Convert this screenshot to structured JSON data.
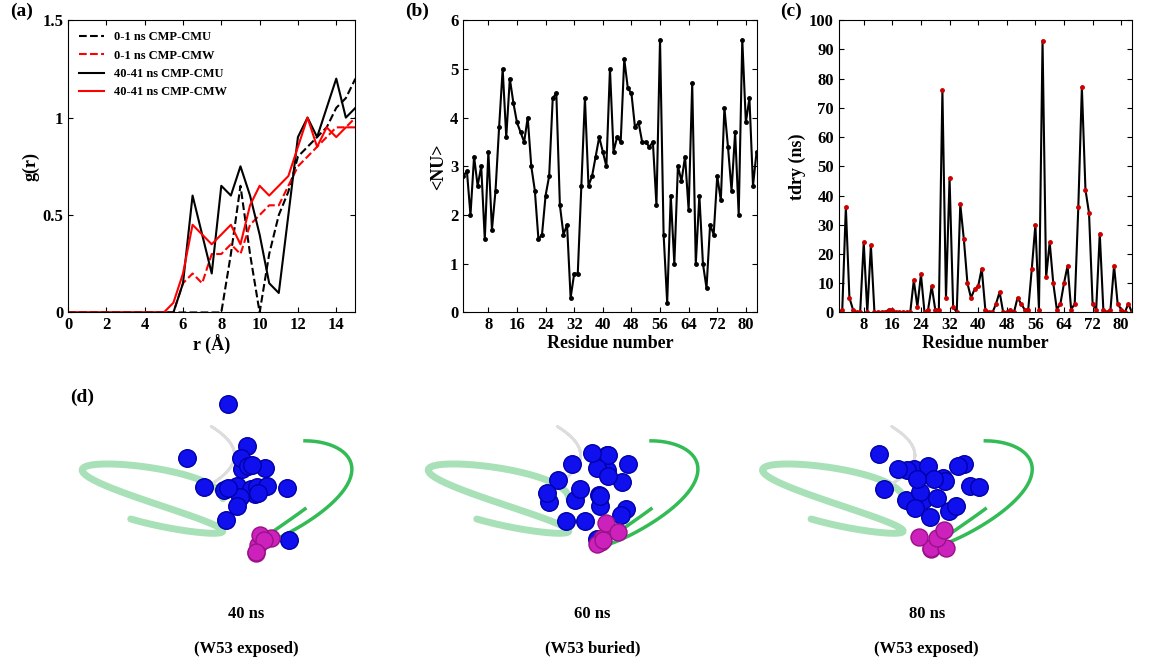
{
  "chart_data": [
    {
      "type": "line",
      "title": "(a)",
      "x_label": "r (Å)",
      "y_label": "g(r)",
      "x": [
        0,
        0.5,
        1,
        1.5,
        2,
        2.5,
        3,
        3.5,
        4,
        4.5,
        5,
        5.5,
        6,
        6.5,
        7,
        7.5,
        8,
        8.5,
        9,
        9.5,
        10,
        10.5,
        11,
        11.5,
        12,
        12.5,
        13,
        13.5,
        14,
        14.5,
        15
      ],
      "xlim": [
        0,
        15
      ],
      "xticks": [
        0,
        2,
        4,
        6,
        8,
        10,
        12,
        14
      ],
      "ylim": [
        0,
        1.5
      ],
      "yticks": [
        0,
        0.5,
        1,
        1.5
      ],
      "legend": "upper left",
      "series": [
        {
          "name": "0-1 ns CMP-CMU",
          "color": "#000000",
          "line_style": "dashed",
          "values": [
            0,
            0,
            0,
            0,
            0,
            0,
            0,
            0,
            0,
            0,
            0,
            0,
            0,
            0,
            0,
            0,
            0,
            0.3,
            0.65,
            0.3,
            0.0,
            0.3,
            0.5,
            0.62,
            0.8,
            0.85,
            0.9,
            0.95,
            1.05,
            1.1,
            1.2
          ]
        },
        {
          "name": "0-1 ns CMP-CMW",
          "color": "#ff0000",
          "line_style": "dashed",
          "values": [
            0,
            0,
            0,
            0,
            0,
            0,
            0,
            0,
            0,
            0,
            0,
            0,
            0.15,
            0.2,
            0.15,
            0.3,
            0.3,
            0.35,
            0.3,
            0.45,
            0.5,
            0.55,
            0.55,
            0.65,
            0.75,
            0.8,
            0.85,
            0.9,
            0.95,
            0.95,
            1.0
          ]
        },
        {
          "name": "40-41 ns CMP-CMU",
          "color": "#000000",
          "line_style": "solid",
          "values": [
            0,
            0,
            0,
            0,
            0,
            0,
            0,
            0,
            0,
            0,
            0,
            0,
            0.15,
            0.6,
            0.4,
            0.2,
            0.65,
            0.6,
            0.75,
            0.6,
            0.4,
            0.15,
            0.1,
            0.5,
            0.9,
            1.0,
            0.9,
            1.05,
            1.2,
            1.0,
            1.05
          ]
        },
        {
          "name": "40-41 ns CMP-CMW",
          "color": "#ff0000",
          "line_style": "solid",
          "values": [
            0,
            0,
            0,
            0,
            0,
            0,
            0,
            0,
            0,
            0,
            0,
            0.05,
            0.2,
            0.45,
            0.4,
            0.35,
            0.4,
            0.45,
            0.35,
            0.55,
            0.65,
            0.6,
            0.65,
            0.7,
            0.85,
            1.0,
            0.85,
            0.95,
            0.9,
            0.95,
            0.95
          ]
        }
      ]
    },
    {
      "type": "line",
      "title": "(b)",
      "x_label": "Residue number",
      "y_label": "<NU>",
      "x": [
        1,
        2,
        3,
        4,
        5,
        6,
        7,
        8,
        9,
        10,
        11,
        12,
        13,
        14,
        15,
        16,
        17,
        18,
        19,
        20,
        21,
        22,
        23,
        24,
        25,
        26,
        27,
        28,
        29,
        30,
        31,
        32,
        33,
        34,
        35,
        36,
        37,
        38,
        39,
        40,
        41,
        42,
        43,
        44,
        45,
        46,
        47,
        48,
        49,
        50,
        51,
        52,
        53,
        54,
        55,
        56,
        57,
        58,
        59,
        60,
        61,
        62,
        63,
        64,
        65,
        66,
        67,
        68,
        69,
        70,
        71,
        72,
        73,
        74,
        75,
        76,
        77,
        78,
        79,
        80,
        81,
        82,
        83
      ],
      "xlim": [
        1,
        83
      ],
      "xticks": [
        8,
        16,
        24,
        32,
        40,
        48,
        56,
        64,
        72,
        80
      ],
      "ylim": [
        0,
        6
      ],
      "yticks": [
        0,
        1,
        2,
        3,
        4,
        5,
        6
      ],
      "series": [
        {
          "color": "#000000",
          "marker": "circle",
          "line_style": "solid",
          "values": [
            2.8,
            2.9,
            2.0,
            3.2,
            2.6,
            3.0,
            1.5,
            3.3,
            1.7,
            2.5,
            3.8,
            5.0,
            3.6,
            4.8,
            4.3,
            3.9,
            3.7,
            3.5,
            4.0,
            3.0,
            2.5,
            1.5,
            1.6,
            2.4,
            2.8,
            4.4,
            4.5,
            2.2,
            1.6,
            1.8,
            0.3,
            0.8,
            0.8,
            2.6,
            4.4,
            2.6,
            2.8,
            3.2,
            3.6,
            3.3,
            3.0,
            5.0,
            3.3,
            3.6,
            3.5,
            5.2,
            4.6,
            4.5,
            3.8,
            3.9,
            3.5,
            3.5,
            3.4,
            3.5,
            2.2,
            5.6,
            1.6,
            0.2,
            2.4,
            1.0,
            3.0,
            2.7,
            3.2,
            2.1,
            4.7,
            1.0,
            2.4,
            1.0,
            0.5,
            1.8,
            1.6,
            2.8,
            2.3,
            4.2,
            3.4,
            2.5,
            3.7,
            2.0,
            5.6,
            3.9,
            4.4,
            2.6,
            3.3
          ]
        }
      ]
    },
    {
      "type": "line",
      "title": "(c)",
      "x_label": "Residue number",
      "y_label": "tdry (ns)",
      "x": [
        1,
        2,
        3,
        4,
        5,
        6,
        7,
        8,
        9,
        10,
        11,
        12,
        13,
        14,
        15,
        16,
        17,
        18,
        19,
        20,
        21,
        22,
        23,
        24,
        25,
        26,
        27,
        28,
        29,
        30,
        31,
        32,
        33,
        34,
        35,
        36,
        37,
        38,
        39,
        40,
        41,
        42,
        43,
        44,
        45,
        46,
        47,
        48,
        49,
        50,
        51,
        52,
        53,
        54,
        55,
        56,
        57,
        58,
        59,
        60,
        61,
        62,
        63,
        64,
        65,
        66,
        67,
        68,
        69,
        70,
        71,
        72,
        73,
        74,
        75,
        76,
        77,
        78,
        79,
        80,
        81,
        82,
        83
      ],
      "xlim": [
        1,
        83
      ],
      "xticks": [
        8,
        16,
        24,
        32,
        40,
        48,
        56,
        64,
        72,
        80
      ],
      "ylim": [
        0,
        100
      ],
      "yticks": [
        0,
        10,
        20,
        30,
        40,
        50,
        60,
        70,
        80,
        90,
        100
      ],
      "series": [
        {
          "color": "#000000",
          "marker": "circle",
          "line_style": "solid",
          "values": [
            0,
            1,
            36,
            5,
            1,
            0,
            0,
            24,
            0,
            23,
            0,
            0,
            0,
            0,
            1,
            1,
            0,
            0,
            0,
            0,
            0,
            11,
            2,
            13,
            0,
            1,
            9,
            1,
            1,
            76,
            5,
            46,
            2,
            0,
            37,
            25,
            10,
            5,
            8,
            9,
            15,
            1,
            0,
            0,
            3,
            7,
            0,
            0,
            1,
            0,
            5,
            3,
            1,
            1,
            15,
            30,
            1,
            93,
            12,
            24,
            10,
            1,
            3,
            10,
            16,
            1,
            3,
            36,
            77,
            42,
            34,
            3,
            1,
            27,
            1,
            0,
            1,
            16,
            3,
            1,
            0,
            3,
            0
          ]
        }
      ]
    }
  ],
  "images": {
    "label": "(d)",
    "captions": [
      {
        "time": "40 ns",
        "state": "(W53 exposed)"
      },
      {
        "time": "60 ns",
        "state": "(W53 buried)"
      },
      {
        "time": "80 ns",
        "state": "(W53 exposed)"
      }
    ]
  }
}
